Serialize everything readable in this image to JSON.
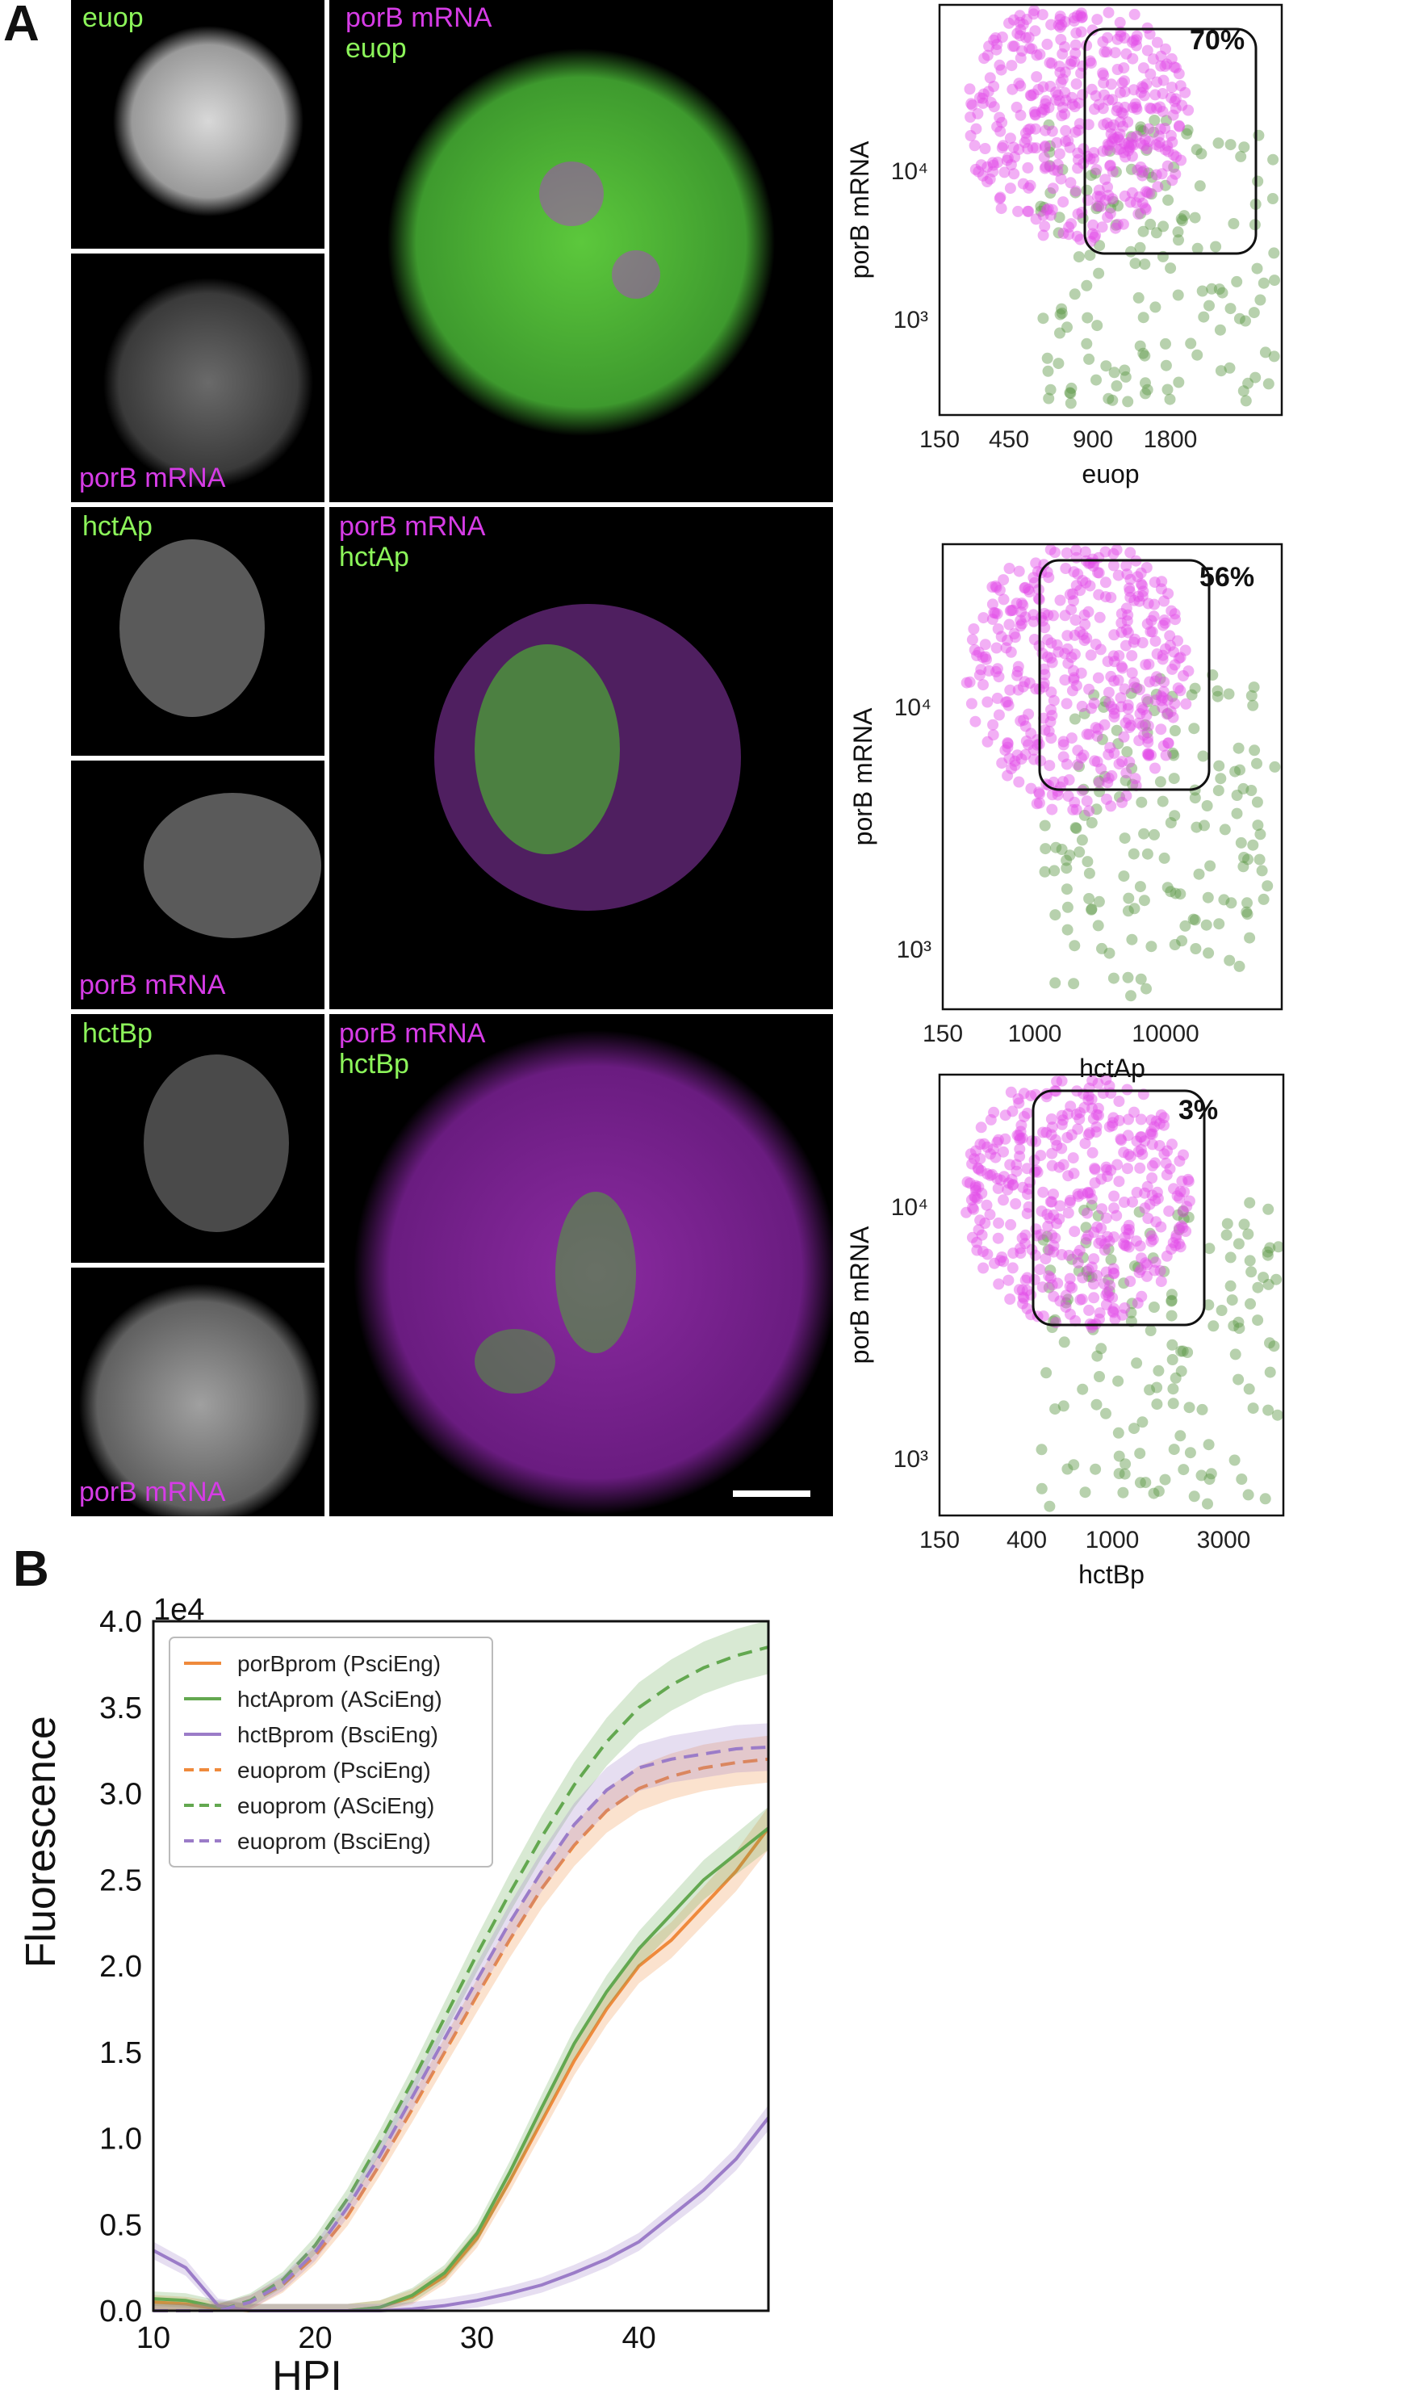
{
  "panels": {
    "A": {
      "letter": "A",
      "rows": [
        {
          "reporter": "euop",
          "channel_top_label": "euop",
          "channel_bottom_label": "porB mRNA",
          "merge_label_1": "porB mRNA",
          "merge_label_2": "euop",
          "scatter": {
            "xlabel": "euop",
            "ylabel": "porB mRNA",
            "xticks": [
              "150",
              "450",
              "900",
              "1800"
            ],
            "yticks": [
              "10³",
              "10⁴"
            ],
            "percent": "70%"
          }
        },
        {
          "reporter": "hctAp",
          "channel_top_label": "hctAp",
          "channel_bottom_label": "porB mRNA",
          "merge_label_1": "porB mRNA",
          "merge_label_2": "hctAp",
          "scatter": {
            "xlabel": "hctAp",
            "ylabel": "porB mRNA",
            "xticks": [
              "150",
              "1000",
              "10000"
            ],
            "yticks": [
              "10³",
              "10⁴"
            ],
            "percent": "56%"
          }
        },
        {
          "reporter": "hctBp",
          "channel_top_label": "hctBp",
          "channel_bottom_label": "porB mRNA",
          "merge_label_1": "porB mRNA",
          "merge_label_2": "hctBp",
          "scatter": {
            "xlabel": "hctBp",
            "ylabel": "porB mRNA",
            "xticks": [
              "150",
              "400",
              "1000",
              "3000"
            ],
            "yticks": [
              "10³",
              "10⁴"
            ],
            "percent": "3%"
          }
        }
      ],
      "colors": {
        "porB_channel": "#e040f0",
        "reporter_channel": "#78e848",
        "scatter_magenta": "#e24ee8",
        "scatter_green": "#5f9a49"
      }
    },
    "B": {
      "letter": "B",
      "chart_data": {
        "type": "line",
        "xlabel": "HPI",
        "ylabel": "Fluorescence",
        "y_multiplier": "1e4",
        "xlim": [
          10,
          48
        ],
        "ylim": [
          0,
          4.0
        ],
        "xticks": [
          "10",
          "20",
          "30",
          "40"
        ],
        "yticks": [
          "0.0",
          "0.5",
          "1.0",
          "1.5",
          "2.0",
          "2.5",
          "3.0",
          "3.5",
          "4.0"
        ],
        "legend_position": "top-left",
        "x": [
          10,
          12,
          14,
          16,
          18,
          20,
          22,
          24,
          26,
          28,
          30,
          32,
          34,
          36,
          38,
          40,
          42,
          44,
          46,
          48
        ],
        "series": [
          {
            "name": "porBprom (PsciEng)",
            "color": "#ef8a3c",
            "dash": "solid",
            "values": [
              0.05,
              0.04,
              0.01,
              0.0,
              0.0,
              0.0,
              0.0,
              0.02,
              0.08,
              0.2,
              0.42,
              0.75,
              1.1,
              1.45,
              1.75,
              2.0,
              2.15,
              2.35,
              2.55,
              2.8
            ]
          },
          {
            "name": "hctAprom (ASciEng)",
            "color": "#63a850",
            "dash": "solid",
            "values": [
              0.07,
              0.06,
              0.02,
              0.0,
              0.0,
              0.0,
              0.0,
              0.02,
              0.09,
              0.22,
              0.45,
              0.8,
              1.18,
              1.55,
              1.85,
              2.1,
              2.3,
              2.5,
              2.65,
              2.8
            ]
          },
          {
            "name": "hctBprom (BsciEng)",
            "color": "#9b7cc8",
            "dash": "solid",
            "values": [
              0.35,
              0.25,
              0.03,
              0.0,
              0.0,
              0.0,
              0.0,
              0.0,
              0.01,
              0.03,
              0.06,
              0.1,
              0.15,
              0.22,
              0.3,
              0.4,
              0.55,
              0.7,
              0.88,
              1.12
            ]
          },
          {
            "name": "euoprom (PsciEng)",
            "color": "#ef8a3c",
            "dash": "dashed",
            "values": [
              0.0,
              0.0,
              0.0,
              0.05,
              0.15,
              0.32,
              0.55,
              0.85,
              1.17,
              1.5,
              1.83,
              2.15,
              2.45,
              2.7,
              2.9,
              3.03,
              3.1,
              3.15,
              3.18,
              3.2
            ]
          },
          {
            "name": "euoprom (ASciEng)",
            "color": "#63a850",
            "dash": "dashed",
            "values": [
              0.0,
              0.0,
              0.0,
              0.06,
              0.18,
              0.38,
              0.65,
              0.98,
              1.33,
              1.7,
              2.07,
              2.42,
              2.75,
              3.05,
              3.3,
              3.5,
              3.63,
              3.73,
              3.8,
              3.85
            ]
          },
          {
            "name": "euoprom (BsciEng)",
            "color": "#9b7cc8",
            "dash": "dashed",
            "values": [
              0.0,
              0.0,
              0.0,
              0.05,
              0.16,
              0.34,
              0.6,
              0.9,
              1.24,
              1.58,
              1.92,
              2.25,
              2.55,
              2.82,
              3.02,
              3.15,
              3.2,
              3.23,
              3.26,
              3.27
            ]
          }
        ]
      }
    }
  }
}
